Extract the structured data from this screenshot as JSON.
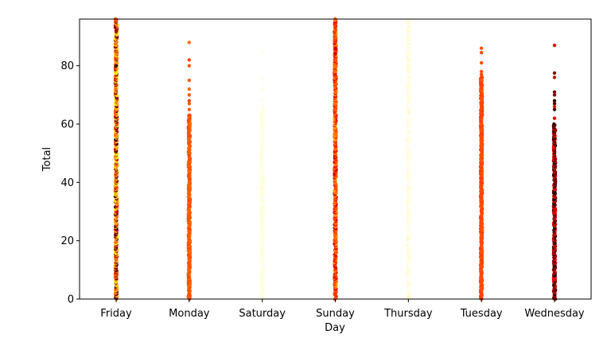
{
  "chart_data": {
    "type": "scatter",
    "title": "",
    "xlabel": "Day",
    "ylabel": "Total",
    "categories": [
      "Friday",
      "Monday",
      "Saturday",
      "Sunday",
      "Thursday",
      "Tuesday",
      "Wednesday"
    ],
    "ylim": [
      0,
      96
    ],
    "yticks": [
      0,
      20,
      40,
      60,
      80
    ],
    "grid": false,
    "legend": "none",
    "colormap": "hot",
    "series": [
      {
        "category": "Friday",
        "range": [
          0,
          96
        ],
        "colors": [
          "#ffee00",
          "#ffb000",
          "#ff8000",
          "#ff4a00",
          "#b00000",
          "#4a0000"
        ],
        "outliers": [
          92,
          88,
          84,
          80
        ]
      },
      {
        "category": "Monday",
        "range": [
          0,
          63
        ],
        "colors": [
          "#ff6a00",
          "#ff5a00",
          "#ff4400"
        ],
        "outliers": [
          88,
          82,
          80,
          75,
          72,
          70,
          68,
          67,
          65,
          63
        ]
      },
      {
        "category": "Saturday",
        "range": [
          0,
          65
        ],
        "colors": [
          "#ffffe0",
          "#ffffcc",
          "#fffff0"
        ],
        "outliers": [
          84.5,
          75.5,
          75,
          72,
          68,
          66
        ]
      },
      {
        "category": "Sunday",
        "range": [
          0,
          96
        ],
        "colors": [
          "#ff6a00",
          "#ff5000",
          "#ffaa00",
          "#ff3000",
          "#cc0000"
        ],
        "outliers": [
          95.5,
          94,
          92,
          90,
          88,
          86,
          84,
          82,
          80,
          78,
          76
        ]
      },
      {
        "category": "Thursday",
        "range": [
          0,
          95
        ],
        "colors": [
          "#fffff4",
          "#ffffe8",
          "#fffbd0"
        ],
        "outliers": [
          95,
          89,
          82,
          80,
          78,
          73,
          66,
          64,
          3,
          1
        ]
      },
      {
        "category": "Tuesday",
        "range": [
          0,
          76
        ],
        "colors": [
          "#ff5500",
          "#ff4a00",
          "#ff3a00"
        ],
        "outliers": [
          86,
          84.5,
          81,
          78,
          77,
          76,
          75
        ]
      },
      {
        "category": "Wednesday",
        "range": [
          0,
          60
        ],
        "colors": [
          "#2a0000",
          "#550000",
          "#880000",
          "#cc0000",
          "#ee0000"
        ],
        "outliers": [
          87,
          77.5,
          76,
          71,
          70,
          68,
          67,
          66,
          65,
          62
        ]
      }
    ]
  }
}
